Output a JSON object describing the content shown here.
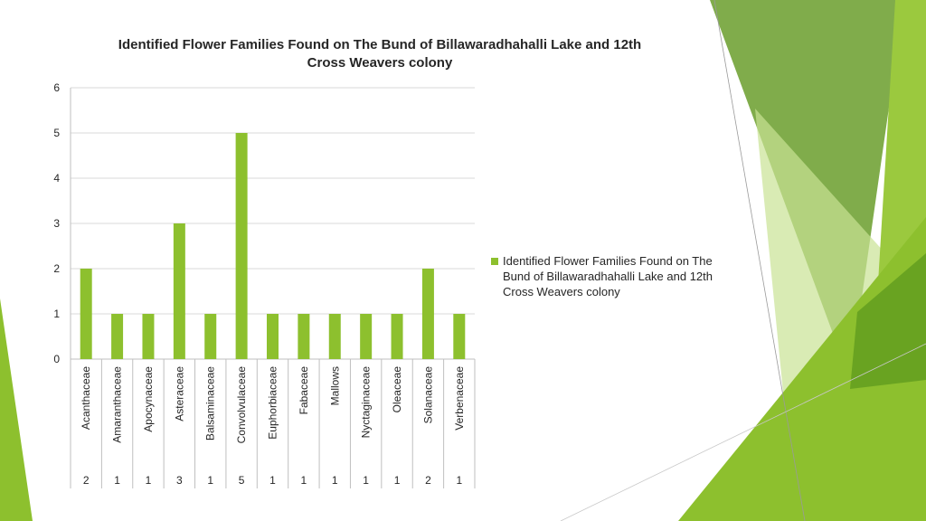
{
  "colors": {
    "bar": "#8dc02e",
    "axis": "#bfbfbf",
    "grid": "#d9d9d9",
    "text": "#262626",
    "accent_light": "#c9e394",
    "accent_mid": "#8dc02e",
    "accent_dark": "#5d9a1e"
  },
  "chart_data": {
    "type": "bar",
    "title": "Identified Flower Families Found on The Bund of Billawaradhahalli Lake and 12th Cross Weavers colony",
    "categories": [
      "Acanthaceae",
      "Amaranthaceae",
      "Apocynaceae",
      "Asteraceae",
      "Balsaminaceae",
      "Convolvulaceae",
      "Euphorbiaceae",
      "Fabaceae",
      "Mallows",
      "Nyctaginaceae",
      "Oleaceae",
      "Solanaceae",
      "Verbenaceae"
    ],
    "series": [
      {
        "name": "Identified Flower Families Found on The Bund of Billawaradhahalli Lake and 12th Cross Weavers colony",
        "values": [
          2,
          1,
          1,
          3,
          1,
          5,
          1,
          1,
          1,
          1,
          1,
          2,
          1
        ]
      }
    ],
    "y_ticks": [
      "0",
      "1",
      "2",
      "3",
      "4",
      "5",
      "6"
    ],
    "ylim": [
      0,
      6
    ],
    "grid": true,
    "legend_position": "right",
    "data_table": true
  }
}
